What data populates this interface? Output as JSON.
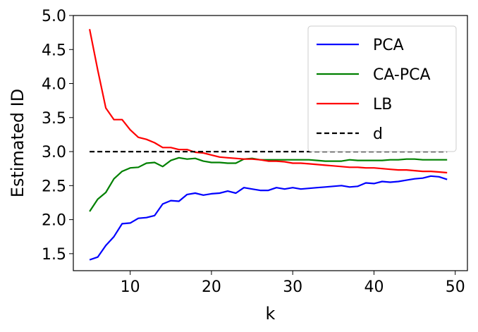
{
  "chart_data": {
    "type": "line",
    "xlabel": "k",
    "ylabel": "Estimated ID",
    "xlim": [
      3,
      51.5
    ],
    "ylim": [
      1.25,
      5.0
    ],
    "xticks": [
      10,
      20,
      30,
      40,
      50
    ],
    "yticks": [
      1.5,
      2.0,
      2.5,
      3.0,
      3.5,
      4.0,
      4.5,
      5.0
    ],
    "xtick_labels": [
      "10",
      "20",
      "30",
      "40",
      "50"
    ],
    "ytick_labels": [
      "1.5",
      "2.0",
      "2.5",
      "3.0",
      "3.5",
      "4.0",
      "4.5",
      "5.0"
    ],
    "grid": false,
    "legend_position": "top-right",
    "x": [
      5,
      6,
      7,
      8,
      9,
      10,
      11,
      12,
      13,
      14,
      15,
      16,
      17,
      18,
      19,
      20,
      21,
      22,
      23,
      24,
      25,
      26,
      27,
      28,
      29,
      30,
      31,
      32,
      33,
      34,
      35,
      36,
      37,
      38,
      39,
      40,
      41,
      42,
      43,
      44,
      45,
      46,
      47,
      48,
      49
    ],
    "series": [
      {
        "name": "PCA",
        "color": "#0000ff",
        "style": "solid",
        "values": [
          1.41,
          1.45,
          1.62,
          1.75,
          1.94,
          1.95,
          2.02,
          2.03,
          2.06,
          2.23,
          2.28,
          2.27,
          2.37,
          2.39,
          2.36,
          2.38,
          2.39,
          2.42,
          2.39,
          2.47,
          2.45,
          2.43,
          2.43,
          2.47,
          2.45,
          2.47,
          2.45,
          2.46,
          2.47,
          2.48,
          2.49,
          2.5,
          2.48,
          2.49,
          2.54,
          2.53,
          2.56,
          2.55,
          2.56,
          2.58,
          2.6,
          2.61,
          2.64,
          2.63,
          2.59
        ]
      },
      {
        "name": "CA-PCA",
        "color": "#008000",
        "style": "solid",
        "values": [
          2.12,
          2.3,
          2.4,
          2.6,
          2.71,
          2.76,
          2.77,
          2.83,
          2.84,
          2.78,
          2.87,
          2.91,
          2.89,
          2.9,
          2.86,
          2.84,
          2.84,
          2.83,
          2.83,
          2.89,
          2.9,
          2.88,
          2.88,
          2.88,
          2.88,
          2.88,
          2.88,
          2.88,
          2.87,
          2.86,
          2.86,
          2.86,
          2.88,
          2.87,
          2.87,
          2.87,
          2.87,
          2.88,
          2.88,
          2.89,
          2.89,
          2.88,
          2.88,
          2.88,
          2.88
        ]
      },
      {
        "name": "LB",
        "color": "#ff0000",
        "style": "solid",
        "values": [
          4.8,
          4.2,
          3.64,
          3.47,
          3.47,
          3.32,
          3.21,
          3.18,
          3.13,
          3.06,
          3.06,
          3.03,
          3.03,
          2.99,
          2.98,
          2.95,
          2.92,
          2.91,
          2.9,
          2.89,
          2.89,
          2.88,
          2.86,
          2.86,
          2.85,
          2.83,
          2.83,
          2.82,
          2.81,
          2.8,
          2.79,
          2.78,
          2.77,
          2.77,
          2.76,
          2.76,
          2.75,
          2.74,
          2.73,
          2.73,
          2.72,
          2.71,
          2.71,
          2.7,
          2.69
        ]
      },
      {
        "name": "d",
        "color": "#000000",
        "style": "dashed",
        "values": [
          3.0,
          3.0,
          3.0,
          3.0,
          3.0,
          3.0,
          3.0,
          3.0,
          3.0,
          3.0,
          3.0,
          3.0,
          3.0,
          3.0,
          3.0,
          3.0,
          3.0,
          3.0,
          3.0,
          3.0,
          3.0,
          3.0,
          3.0,
          3.0,
          3.0,
          3.0,
          3.0,
          3.0,
          3.0,
          3.0,
          3.0,
          3.0,
          3.0,
          3.0,
          3.0,
          3.0,
          3.0,
          3.0,
          3.0,
          3.0,
          3.0,
          3.0,
          3.0,
          3.0,
          3.0
        ]
      }
    ]
  }
}
